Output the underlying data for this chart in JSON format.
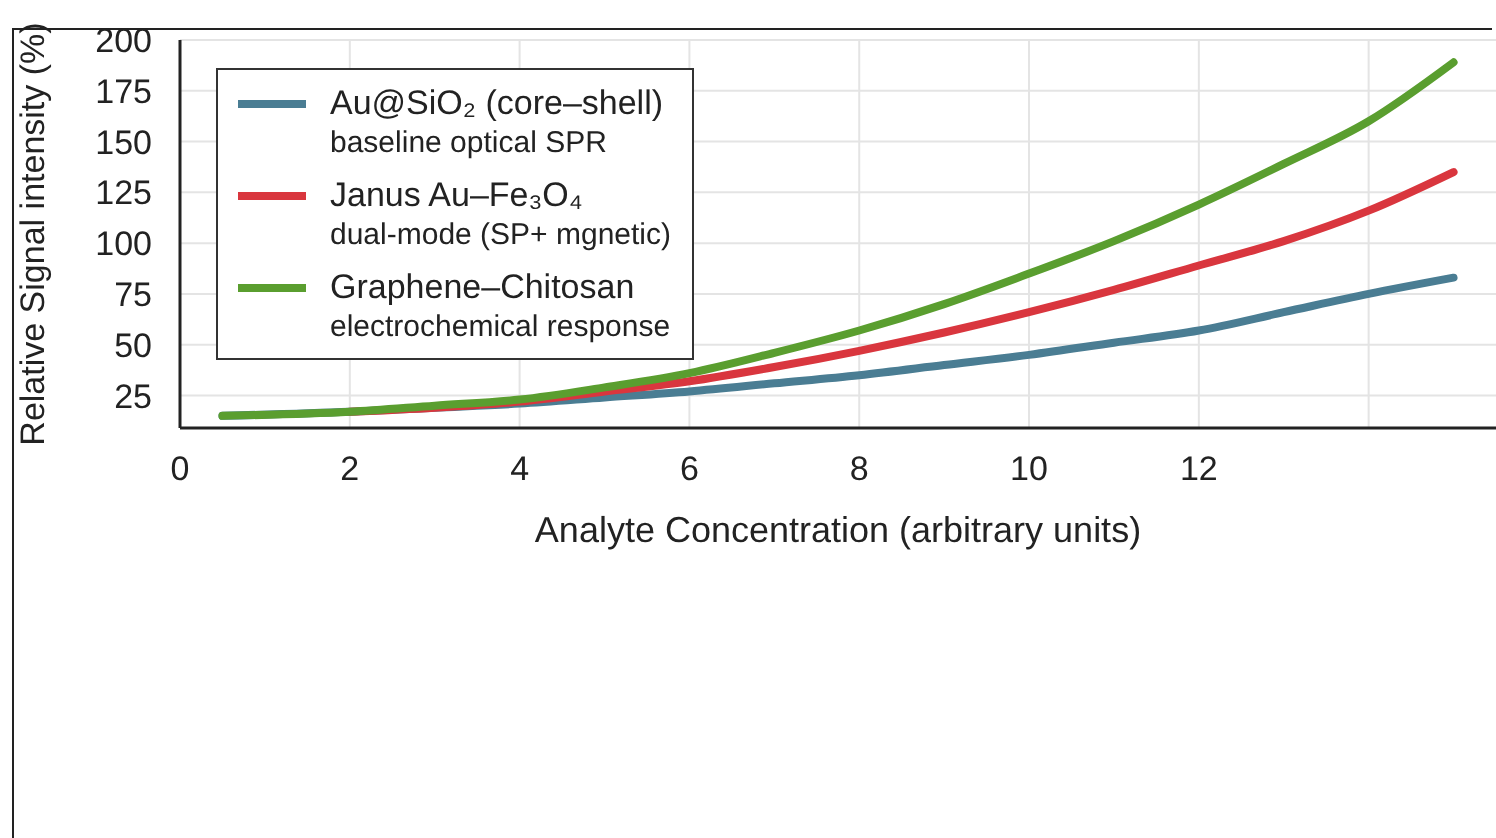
{
  "chart_data": {
    "type": "line",
    "xlabel": "Analyte Concentration (arbitrary units)",
    "ylabel": "Relative Signal intensity (%)",
    "x": [
      0.5,
      2,
      3,
      4,
      5,
      6,
      7,
      8,
      9,
      10,
      11,
      12,
      13,
      14,
      15
    ],
    "series": [
      {
        "name": "Au@SiO₂ (core–shell)\nbaseline optical SPR",
        "color": "#4a7d93",
        "values": [
          15,
          17,
          19,
          21,
          24,
          27,
          31,
          35,
          40,
          45,
          51,
          57,
          66,
          75,
          83
        ]
      },
      {
        "name": "Janus Au–Fe₃O₄\ndual-mode (SP+ mgnetic)",
        "color": "#d9363e",
        "values": [
          null,
          17,
          19,
          22,
          27,
          32,
          39,
          47,
          56,
          66,
          77,
          89,
          101,
          116,
          135
        ]
      },
      {
        "name": "Graphene–Chitosan\nelectrochemical response",
        "color": "#5a9e2f",
        "values": [
          15,
          17,
          20,
          23,
          29,
          36,
          46,
          57,
          70,
          85,
          101,
          119,
          139,
          160,
          189
        ]
      }
    ],
    "xlim": [
      0,
      15.5
    ],
    "xticks": [
      0,
      2,
      4,
      6,
      8,
      10,
      12,
      {
        "value": 14,
        "label": null
      }
    ],
    "ylim": [
      9,
      200
    ],
    "yticks": [
      25,
      50,
      75,
      100,
      125,
      150,
      175,
      200
    ],
    "grid": true,
    "legend": "top left",
    "marker": "none",
    "line_style": "solid"
  }
}
